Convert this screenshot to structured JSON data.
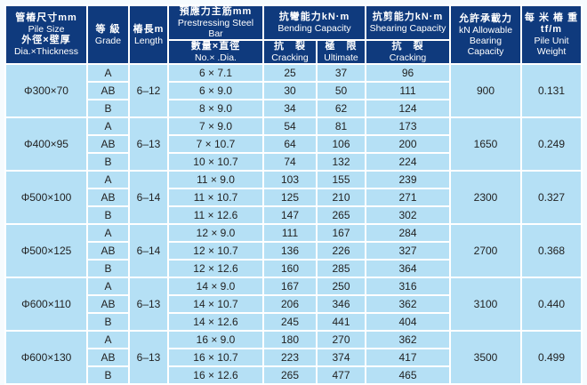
{
  "colors": {
    "header_bg": "#0f3a7d",
    "row_bg": "#b5e0f5",
    "grid_line": "#ffffff",
    "body_text": "#222222",
    "header_text": "#ffffff"
  },
  "table": {
    "header": {
      "pile_size": {
        "lines": [
          "管樁尺寸mm",
          "Pile Size",
          "外徑×壁厚",
          "Dia.×Thickness"
        ]
      },
      "grade": {
        "zh": "等 級",
        "en": "Grade"
      },
      "length": {
        "zh": "樁長m",
        "en": "Length"
      },
      "steel_bar": {
        "zh": "預應力主筋mm",
        "en": "Prestressing Steel Bar"
      },
      "steel_bar_sub": {
        "zh": "數量×直徑",
        "en": "No.× .Dia."
      },
      "bending": {
        "zh": "抗彎能力kN·m",
        "en": "Bending Capacity"
      },
      "bending_cracking": {
        "zh": "抗　裂",
        "en": "Cracking"
      },
      "bending_ultimate": {
        "zh": "極　限",
        "en": "Ultimate"
      },
      "shearing": {
        "zh": "抗剪能力kN·m",
        "en": "Shearing Capacity"
      },
      "shearing_cracking": {
        "zh": "抗　裂",
        "en": "Cracking"
      },
      "bearing": {
        "lines": [
          "允許承載力",
          "kN Allowable",
          "Bearing",
          "Capacity"
        ]
      },
      "unit_weight": {
        "lines": [
          "每 米 樁 重 tf/m",
          "Pile Unit Weight"
        ]
      }
    },
    "groups": [
      {
        "size": "Φ300×70",
        "length": "6–12",
        "bearing": "900",
        "weight": "0.131",
        "rows": [
          {
            "grade": "A",
            "bars": "6 × 7.1",
            "crack": "25",
            "ultimate": "37",
            "shear": "96"
          },
          {
            "grade": "AB",
            "bars": "6 × 9.0",
            "crack": "30",
            "ultimate": "50",
            "shear": "111"
          },
          {
            "grade": "B",
            "bars": "8 × 9.0",
            "crack": "34",
            "ultimate": "62",
            "shear": "124"
          }
        ]
      },
      {
        "size": "Φ400×95",
        "length": "6–13",
        "bearing": "1650",
        "weight": "0.249",
        "rows": [
          {
            "grade": "A",
            "bars": "7 × 9.0",
            "crack": "54",
            "ultimate": "81",
            "shear": "173"
          },
          {
            "grade": "AB",
            "bars": "7 × 10.7",
            "crack": "64",
            "ultimate": "106",
            "shear": "200"
          },
          {
            "grade": "B",
            "bars": "10 × 10.7",
            "crack": "74",
            "ultimate": "132",
            "shear": "224"
          }
        ]
      },
      {
        "size": "Φ500×100",
        "length": "6–14",
        "bearing": "2300",
        "weight": "0.327",
        "rows": [
          {
            "grade": "A",
            "bars": "11 × 9.0",
            "crack": "103",
            "ultimate": "155",
            "shear": "239"
          },
          {
            "grade": "AB",
            "bars": "11 × 10.7",
            "crack": "125",
            "ultimate": "210",
            "shear": "271"
          },
          {
            "grade": "B",
            "bars": "11 × 12.6",
            "crack": "147",
            "ultimate": "265",
            "shear": "302"
          }
        ]
      },
      {
        "size": "Φ500×125",
        "length": "6–14",
        "bearing": "2700",
        "weight": "0.368",
        "rows": [
          {
            "grade": "A",
            "bars": "12 × 9.0",
            "crack": "111",
            "ultimate": "167",
            "shear": "284"
          },
          {
            "grade": "AB",
            "bars": "12 × 10.7",
            "crack": "136",
            "ultimate": "226",
            "shear": "327"
          },
          {
            "grade": "B",
            "bars": "12 × 12.6",
            "crack": "160",
            "ultimate": "285",
            "shear": "364"
          }
        ]
      },
      {
        "size": "Φ600×110",
        "length": "6–13",
        "bearing": "3100",
        "weight": "0.440",
        "rows": [
          {
            "grade": "A",
            "bars": "14 × 9.0",
            "crack": "167",
            "ultimate": "250",
            "shear": "316"
          },
          {
            "grade": "AB",
            "bars": "14 × 10.7",
            "crack": "206",
            "ultimate": "346",
            "shear": "362"
          },
          {
            "grade": "B",
            "bars": "14 × 12.6",
            "crack": "245",
            "ultimate": "441",
            "shear": "404"
          }
        ]
      },
      {
        "size": "Φ600×130",
        "length": "6–13",
        "bearing": "3500",
        "weight": "0.499",
        "rows": [
          {
            "grade": "A",
            "bars": "16 × 9.0",
            "crack": "180",
            "ultimate": "270",
            "shear": "362"
          },
          {
            "grade": "AB",
            "bars": "16 × 10.7",
            "crack": "223",
            "ultimate": "374",
            "shear": "417"
          },
          {
            "grade": "B",
            "bars": "16 × 12.6",
            "crack": "265",
            "ultimate": "477",
            "shear": "465"
          }
        ]
      }
    ]
  }
}
